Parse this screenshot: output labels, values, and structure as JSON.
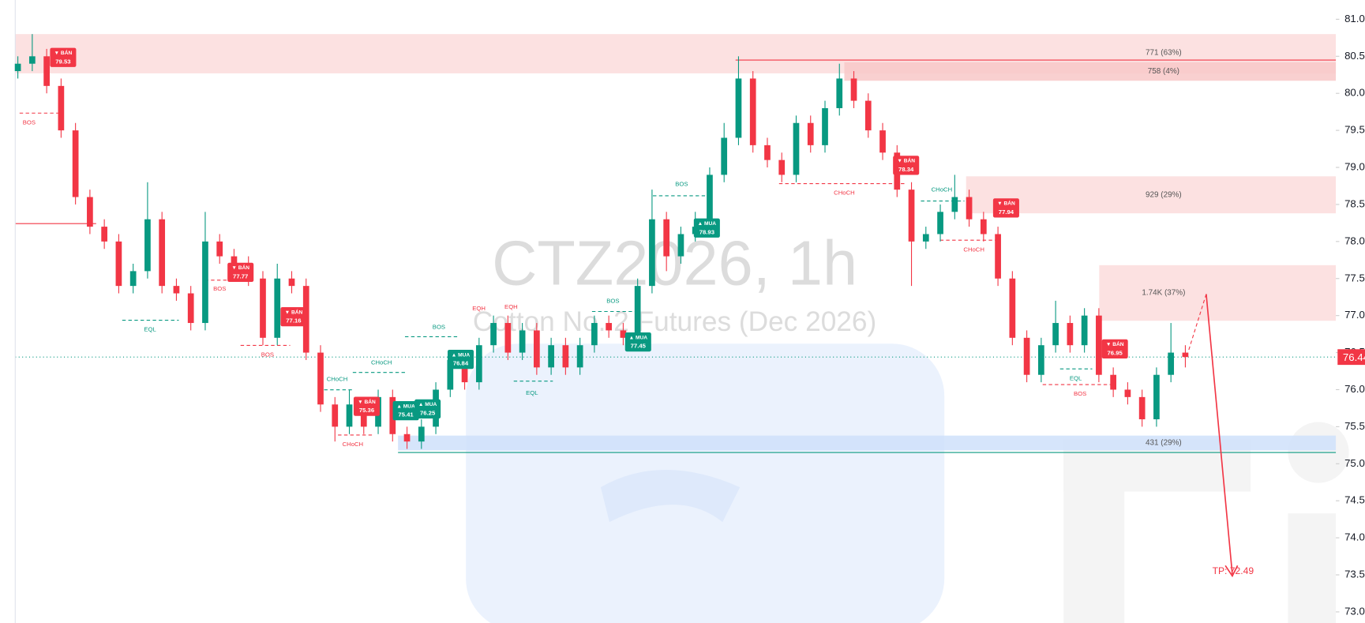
{
  "chart_data": {
    "type": "candlestick",
    "title": "CTZ2026, 1h",
    "subtitle": "Cotton No. 2 Futures (Dec 2026)",
    "up_color": "#089981",
    "down_color": "#f23645",
    "open": [
      80.3,
      80.4,
      80.5,
      80.1,
      79.5,
      78.6,
      78.2,
      78.0,
      77.4,
      77.6,
      78.3,
      77.4,
      77.3,
      76.9,
      78.0,
      77.8,
      77.7,
      77.5,
      76.7,
      77.5,
      77.4,
      76.5,
      75.8,
      75.5,
      75.8,
      75.5,
      75.9,
      75.4,
      75.3,
      75.5,
      76.0,
      76.4,
      76.1,
      76.6,
      76.9,
      76.5,
      76.8,
      76.3,
      76.6,
      76.3,
      76.6,
      76.9,
      76.8,
      76.7,
      77.4,
      78.3,
      77.8,
      78.1,
      78.2,
      78.9,
      79.4,
      80.2,
      79.3,
      79.1,
      78.9,
      79.6,
      79.3,
      79.8,
      80.2,
      79.9,
      79.5,
      79.2,
      78.7,
      78.0,
      78.1,
      78.4,
      78.6,
      78.3,
      78.1,
      77.5,
      76.7,
      76.2,
      76.6,
      76.9,
      76.6,
      77.0,
      76.2,
      76.0,
      75.9,
      75.6,
      76.2,
      76.5
    ],
    "high": [
      80.5,
      80.8,
      80.6,
      80.2,
      79.6,
      78.7,
      78.3,
      78.1,
      77.7,
      78.8,
      78.4,
      77.5,
      77.4,
      78.4,
      78.1,
      77.9,
      77.8,
      77.6,
      77.7,
      77.6,
      77.5,
      76.6,
      75.9,
      76.0,
      75.9,
      76.0,
      76.0,
      75.5,
      75.6,
      76.1,
      76.5,
      76.5,
      76.7,
      77.0,
      77.0,
      76.9,
      76.9,
      76.7,
      76.7,
      76.7,
      77.0,
      77.0,
      76.9,
      77.5,
      78.7,
      78.4,
      78.2,
      78.4,
      79.0,
      79.6,
      80.5,
      80.3,
      79.4,
      79.2,
      79.7,
      79.7,
      79.9,
      80.4,
      80.3,
      80.0,
      79.6,
      79.3,
      78.8,
      78.2,
      78.5,
      78.9,
      78.7,
      78.4,
      78.2,
      77.6,
      76.8,
      76.7,
      77.2,
      77.0,
      77.1,
      77.1,
      76.3,
      76.1,
      76.0,
      76.3,
      76.9,
      76.6
    ],
    "low": [
      80.2,
      80.3,
      80.0,
      79.4,
      78.5,
      78.1,
      77.9,
      77.3,
      77.3,
      77.5,
      77.3,
      77.2,
      76.8,
      76.8,
      77.7,
      77.6,
      77.4,
      76.6,
      76.6,
      77.3,
      76.4,
      75.7,
      75.3,
      75.4,
      75.4,
      75.4,
      75.3,
      75.2,
      75.2,
      75.4,
      75.9,
      76.0,
      76.0,
      76.5,
      76.4,
      76.4,
      76.2,
      76.2,
      76.2,
      76.2,
      76.5,
      76.7,
      76.6,
      76.6,
      77.3,
      77.6,
      77.7,
      78.0,
      78.1,
      78.8,
      79.3,
      79.2,
      79.0,
      78.8,
      78.8,
      79.2,
      79.2,
      79.7,
      79.8,
      79.4,
      79.1,
      78.6,
      77.4,
      77.9,
      78.0,
      78.3,
      78.2,
      78.0,
      77.4,
      76.6,
      76.1,
      76.1,
      76.5,
      76.5,
      76.5,
      76.1,
      75.9,
      75.8,
      75.5,
      75.5,
      76.1,
      76.3
    ],
    "close": [
      80.4,
      80.5,
      80.1,
      79.5,
      78.6,
      78.2,
      78.0,
      77.4,
      77.6,
      78.3,
      77.4,
      77.3,
      76.9,
      78.0,
      77.8,
      77.7,
      77.5,
      76.7,
      77.5,
      77.4,
      76.5,
      75.8,
      75.5,
      75.8,
      75.5,
      75.9,
      75.4,
      75.3,
      75.5,
      76.0,
      76.4,
      76.1,
      76.6,
      76.9,
      76.5,
      76.8,
      76.3,
      76.6,
      76.3,
      76.6,
      76.9,
      76.8,
      76.7,
      77.4,
      78.3,
      77.8,
      78.1,
      78.2,
      78.9,
      79.4,
      80.2,
      79.3,
      79.1,
      78.9,
      79.6,
      79.3,
      79.8,
      80.2,
      79.9,
      79.5,
      79.2,
      78.7,
      78.0,
      78.1,
      78.4,
      78.6,
      78.3,
      78.1,
      77.5,
      76.7,
      76.2,
      76.6,
      76.9,
      76.6,
      77.0,
      76.2,
      76.0,
      75.9,
      75.6,
      76.2,
      76.5,
      76.44
    ],
    "ylim": [
      72.85,
      81.26
    ],
    "yticks": [
      {
        "value": 81,
        "label": "81.00"
      },
      {
        "value": 80.5,
        "label": "80.50"
      },
      {
        "value": 80,
        "label": "80.00"
      },
      {
        "value": 79.5,
        "label": "79.50"
      },
      {
        "value": 79,
        "label": "79.00"
      },
      {
        "value": 78.5,
        "label": "78.50"
      },
      {
        "value": 78,
        "label": "78.00"
      },
      {
        "value": 77.5,
        "label": "77.50"
      },
      {
        "value": 77,
        "label": "77.00"
      },
      {
        "value": 76.5,
        "label": "76.50"
      },
      {
        "value": 76,
        "label": "76.00"
      },
      {
        "value": 75.5,
        "label": "75.50"
      },
      {
        "value": 75,
        "label": "75.00"
      },
      {
        "value": 74.5,
        "label": "74.50"
      },
      {
        "value": 74,
        "label": "74.00"
      },
      {
        "value": 73.5,
        "label": "73.50"
      },
      {
        "value": 73,
        "label": "73.00"
      }
    ],
    "last_price": 76.44,
    "target_label": "TP:",
    "target": 72.49,
    "zones": [
      {
        "label": "771 (63%)",
        "top": 80.8,
        "bottom": 80.27,
        "color": "#fcdcdc"
      },
      {
        "label": "758 (4%)",
        "top": 80.42,
        "bottom": 80.17,
        "color": "#f8c8c8"
      },
      {
        "label": "929 (29%)",
        "top": 78.88,
        "bottom": 78.38,
        "color": "#fcdcdc"
      },
      {
        "label": "1.74K (37%)",
        "top": 77.68,
        "bottom": 76.93,
        "color": "#fcdcdc"
      },
      {
        "label": "431 (29%)",
        "top": 75.38,
        "bottom": 75.18,
        "color": "#cfe0fa"
      }
    ],
    "signals": [
      {
        "label": "▼ BÁN",
        "price": 79.53
      },
      {
        "label": "▼ BÁN",
        "price": 77.77
      },
      {
        "label": "▼ BÁN",
        "price": 77.16
      },
      {
        "label": "▼ BÁN",
        "price": 75.36
      },
      {
        "label": "▲ MUA",
        "price": 75.41
      },
      {
        "label": "▲ MUA",
        "price": 76.25
      },
      {
        "label": "▲ MUA",
        "price": 76.84
      },
      {
        "label": "▲ MUA",
        "price": 78.93
      },
      {
        "label": "▲ MUA",
        "price": 77.45
      },
      {
        "label": "▼ BÁN",
        "price": 78.34
      },
      {
        "label": "▼ BÁN",
        "price": 77.94
      },
      {
        "label": "▼ BÁN",
        "price": 76.95
      }
    ],
    "structure_labels": [
      "BOS",
      "BOS",
      "BOS",
      "BOS",
      "BOS",
      "BOS",
      "BOS",
      "CHoCH",
      "CHoCH",
      "CHoCH",
      "CHoCH",
      "CHoCH",
      "CHoCH",
      "EQL",
      "EQL",
      "EQL",
      "EQH",
      "EQH"
    ]
  }
}
